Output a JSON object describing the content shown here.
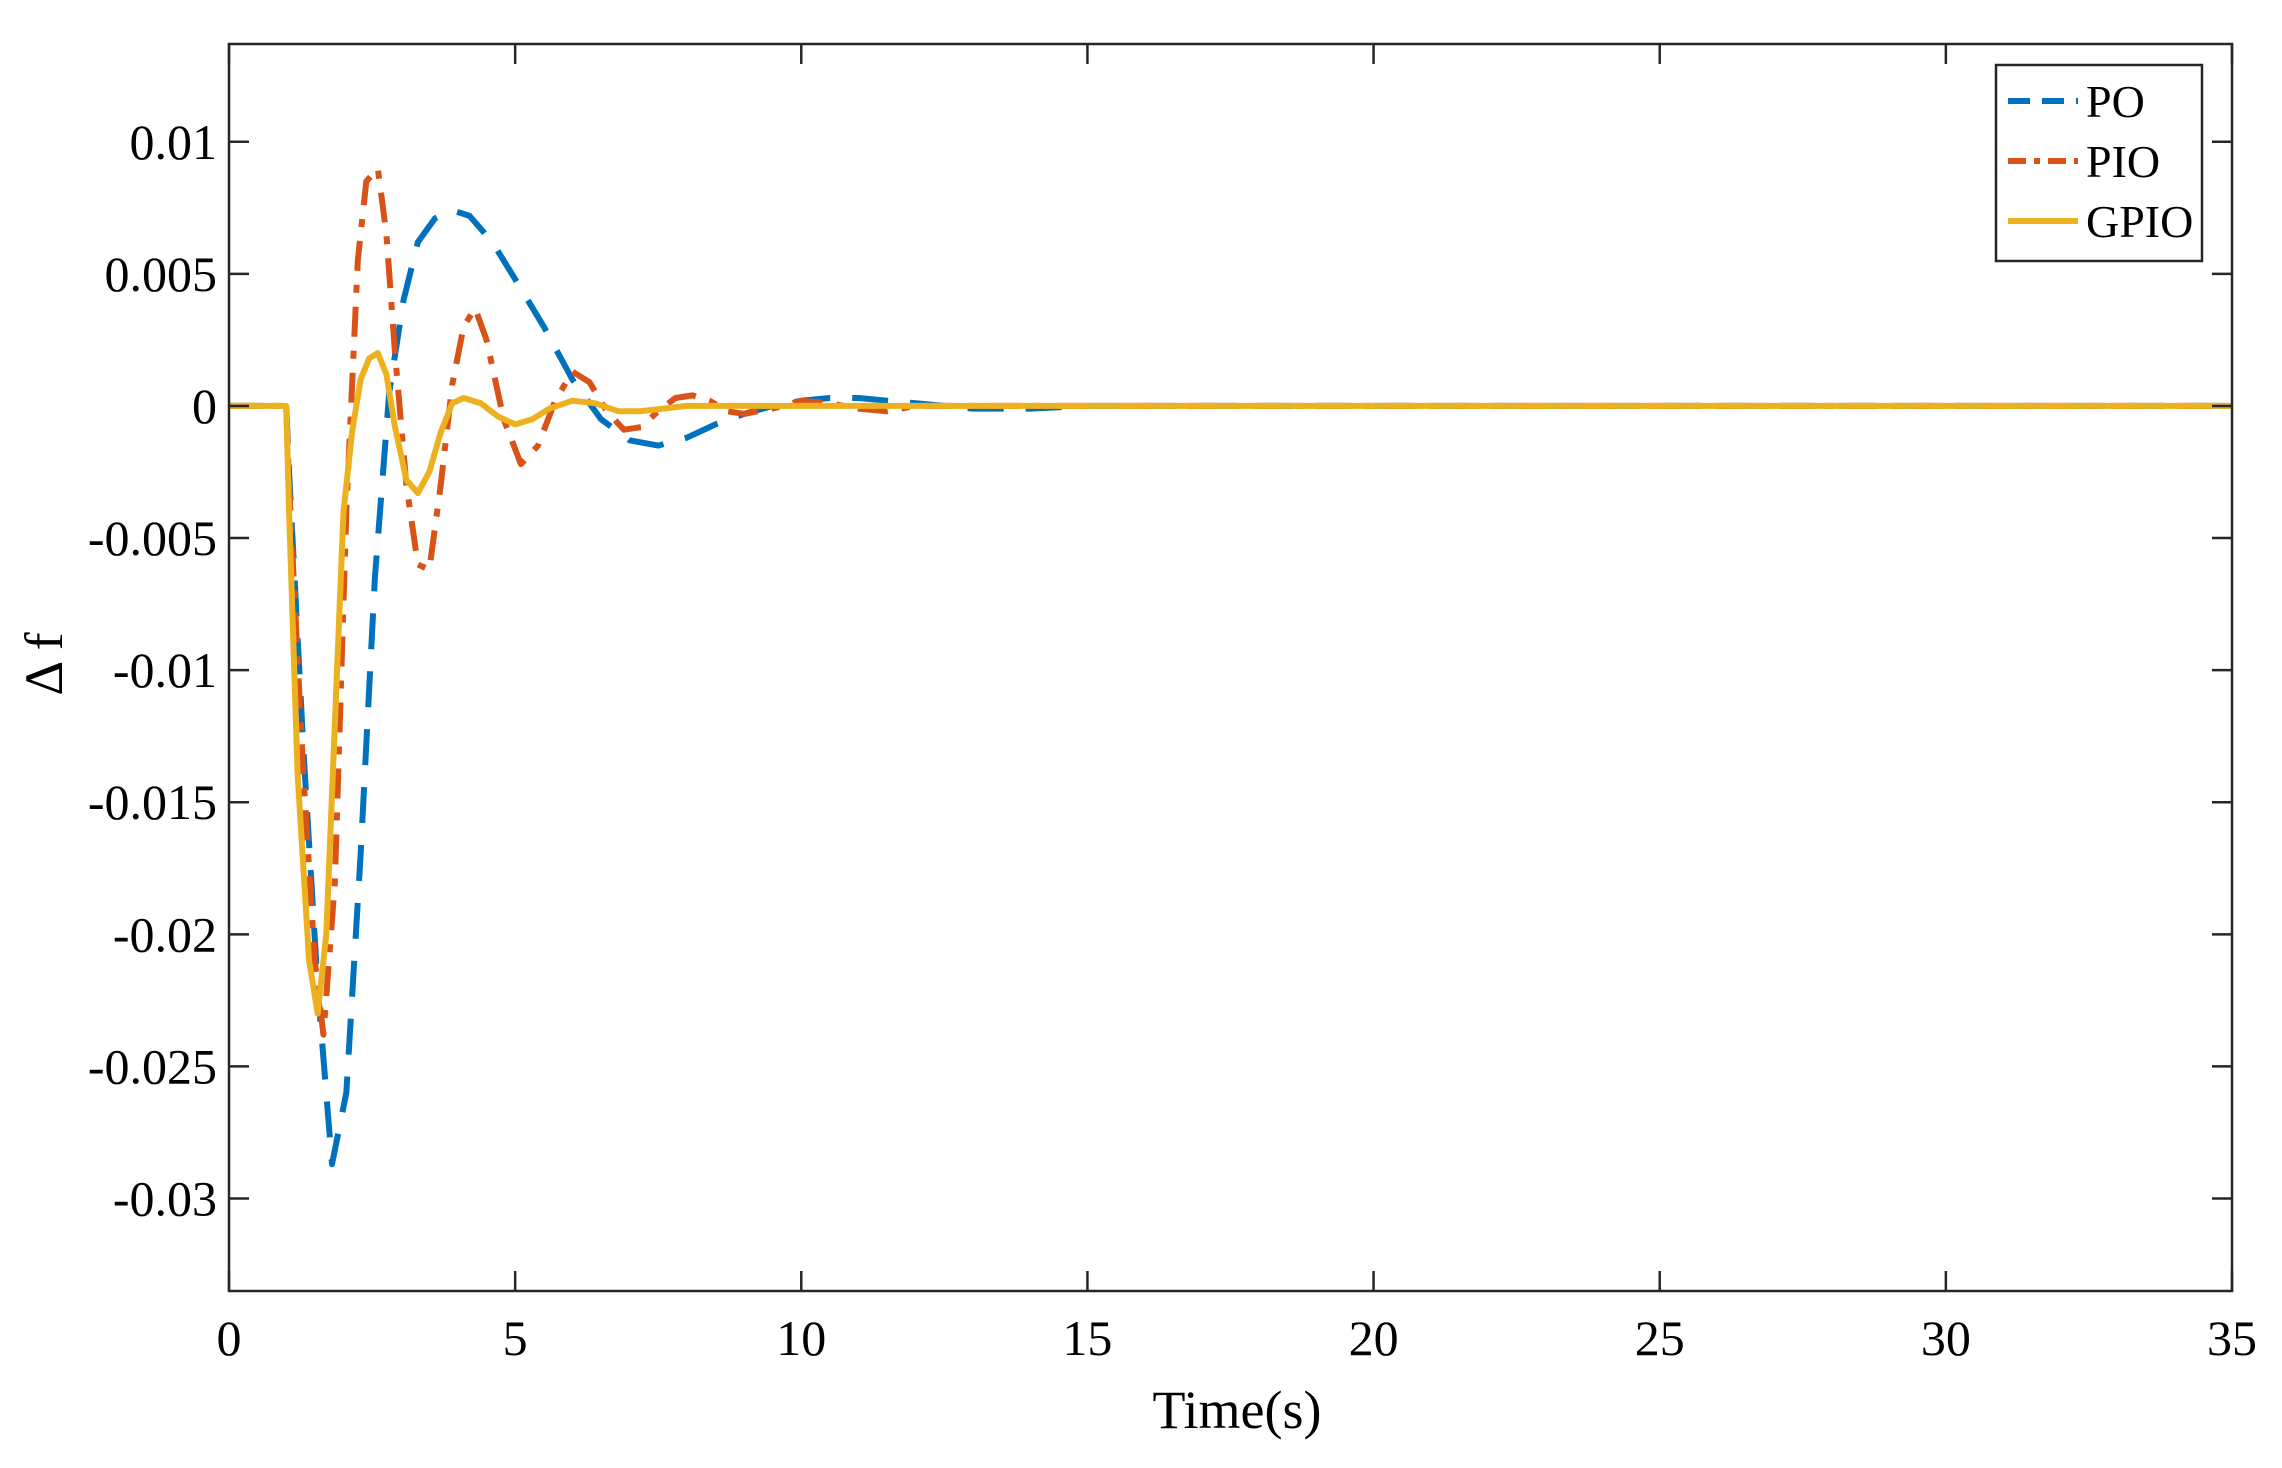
{
  "chart_data": {
    "type": "line",
    "title": "",
    "xlabel": "Time(s)",
    "ylabel": "Δ f",
    "xlim": [
      0,
      35
    ],
    "ylim": [
      -0.0335,
      0.0137
    ],
    "x_ticks": [
      0,
      5,
      10,
      15,
      20,
      25,
      30,
      35
    ],
    "x_tick_labels": [
      "0",
      "5",
      "10",
      "15",
      "20",
      "25",
      "30",
      "35"
    ],
    "y_ticks": [
      0.01,
      0.005,
      0,
      -0.005,
      -0.01,
      -0.015,
      -0.02,
      -0.025,
      -0.03
    ],
    "y_tick_labels": [
      "0.01",
      "0.005",
      "0",
      "-0.005",
      "-0.01",
      "-0.015",
      "-0.02",
      "-0.025",
      "-0.03"
    ],
    "grid": false,
    "legend_position": "top-right",
    "series": [
      {
        "name": "PO",
        "color": "#0072BD",
        "style": "dashed",
        "x": [
          0,
          1.0,
          1.05,
          1.3,
          1.55,
          1.8,
          2.05,
          2.3,
          2.55,
          2.8,
          3.05,
          3.3,
          3.6,
          3.9,
          4.2,
          4.6,
          5.0,
          5.5,
          6.0,
          6.5,
          7.0,
          7.5,
          8.0,
          8.5,
          9.0,
          9.5,
          10.0,
          10.5,
          11.0,
          11.5,
          12.0,
          13.0,
          14.0,
          15.0,
          16.0,
          35.0
        ],
        "y": [
          0,
          0,
          -0.0025,
          -0.013,
          -0.022,
          -0.0287,
          -0.026,
          -0.017,
          -0.0065,
          0.0005,
          0.004,
          0.0062,
          0.0071,
          0.0074,
          0.0072,
          0.0062,
          0.0048,
          0.003,
          0.001,
          -0.0005,
          -0.0013,
          -0.0015,
          -0.0012,
          -0.0007,
          -0.0003,
          0.0,
          0.0002,
          0.0003,
          0.0003,
          0.0002,
          0.0001,
          -0.0001,
          -0.0001,
          0.0,
          0.0,
          0.0
        ]
      },
      {
        "name": "PIO",
        "color": "#D95319",
        "style": "dash-dot",
        "x": [
          0,
          1.0,
          1.05,
          1.3,
          1.5,
          1.65,
          1.85,
          2.05,
          2.25,
          2.4,
          2.6,
          2.75,
          2.9,
          3.1,
          3.3,
          3.5,
          3.7,
          3.9,
          4.1,
          4.3,
          4.5,
          4.8,
          5.1,
          5.4,
          5.7,
          6.0,
          6.3,
          6.6,
          6.9,
          7.2,
          7.5,
          7.8,
          8.1,
          8.4,
          8.7,
          9.0,
          9.5,
          10.0,
          10.5,
          11.0,
          11.5,
          12.0,
          13.0,
          14.0,
          35.0
        ],
        "y": [
          0,
          0,
          -0.003,
          -0.014,
          -0.021,
          -0.0238,
          -0.018,
          -0.004,
          0.0055,
          0.0085,
          0.009,
          0.0065,
          0.002,
          -0.003,
          -0.006,
          -0.0062,
          -0.003,
          0.0008,
          0.003,
          0.0037,
          0.0025,
          -0.0005,
          -0.0022,
          -0.0015,
          0.0002,
          0.0013,
          0.0009,
          -0.0002,
          -0.0009,
          -0.0008,
          -0.0002,
          0.0003,
          0.0004,
          0.0002,
          -0.0002,
          -0.0003,
          -0.0001,
          0.0002,
          0.0001,
          -0.0001,
          -0.0002,
          0.0,
          0.0,
          0.0,
          0.0
        ]
      },
      {
        "name": "GPIO",
        "color": "#EDB120",
        "style": "solid",
        "x": [
          0,
          1.0,
          1.05,
          1.2,
          1.4,
          1.55,
          1.7,
          1.85,
          2.0,
          2.15,
          2.3,
          2.45,
          2.6,
          2.75,
          2.9,
          3.1,
          3.3,
          3.5,
          3.7,
          3.9,
          4.1,
          4.4,
          4.7,
          5.0,
          5.3,
          5.6,
          6.0,
          6.4,
          6.8,
          7.2,
          8.0,
          9.0,
          10.0,
          11.0,
          35.0
        ],
        "y": [
          0,
          0,
          -0.004,
          -0.014,
          -0.021,
          -0.023,
          -0.02,
          -0.012,
          -0.004,
          -0.001,
          0.001,
          0.0018,
          0.002,
          0.0012,
          -0.0008,
          -0.0028,
          -0.0033,
          -0.0025,
          -0.001,
          0.0001,
          0.0003,
          0.0001,
          -0.0004,
          -0.0007,
          -0.0005,
          -0.0001,
          0.0002,
          0.0001,
          -0.0002,
          -0.0002,
          0.0,
          0.0,
          0.0,
          0.0,
          0.0
        ]
      }
    ]
  }
}
